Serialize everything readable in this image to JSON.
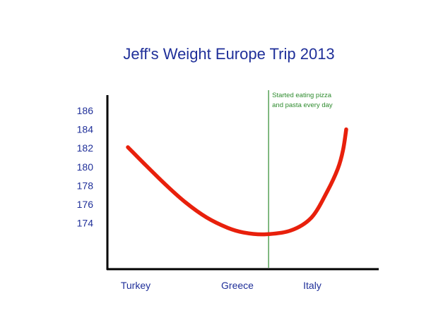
{
  "chart_data": {
    "type": "line",
    "title": "Jeff's Weight Europe Trip 2013",
    "xlabel": "",
    "ylabel": "",
    "x_categories": [
      "Turkey",
      "Greece",
      "Italy"
    ],
    "y_ticks": [
      174,
      176,
      178,
      180,
      182,
      184,
      186
    ],
    "y_axis_tick_labels_only": true,
    "grid": false,
    "legend": "none",
    "series": [
      {
        "color": "#e8200c",
        "points": [
          {
            "x": 0.0,
            "y": 182.1
          },
          {
            "x": 0.15,
            "y": 180.4
          },
          {
            "x": 0.35,
            "y": 178.2
          },
          {
            "x": 0.55,
            "y": 176.2
          },
          {
            "x": 0.75,
            "y": 174.6
          },
          {
            "x": 0.95,
            "y": 173.5
          },
          {
            "x": 1.1,
            "y": 173.0
          },
          {
            "x": 1.3,
            "y": 172.8
          },
          {
            "x": 1.55,
            "y": 173.2
          },
          {
            "x": 1.75,
            "y": 174.6
          },
          {
            "x": 1.9,
            "y": 177.4
          },
          {
            "x": 2.0,
            "y": 179.8
          },
          {
            "x": 2.05,
            "y": 181.8
          },
          {
            "x": 2.08,
            "y": 184.0
          }
        ]
      }
    ],
    "annotation": {
      "x": 1.3,
      "color": "#2e8b2e",
      "lines": [
        "Started eating pizza",
        "and pasta every day"
      ]
    }
  }
}
